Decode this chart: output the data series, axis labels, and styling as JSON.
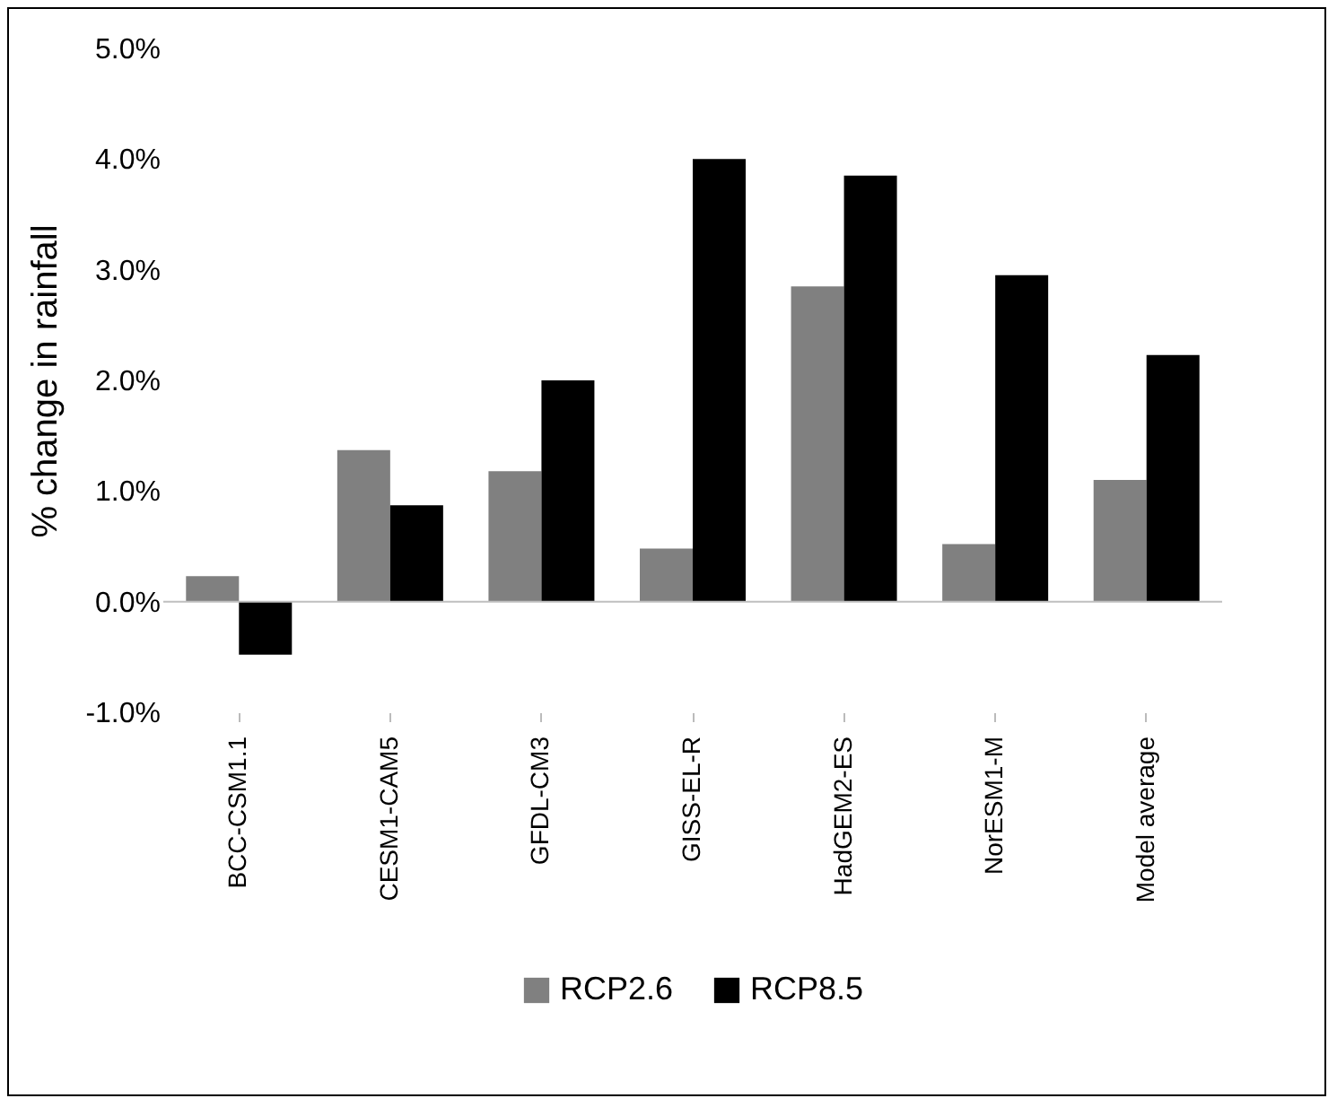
{
  "chart_data": {
    "type": "bar",
    "ylabel": "% change in rainfall",
    "categories": [
      "BCC-CSM1.1",
      "CESM1-CAM5",
      "GFDL-CM3",
      "GISS-EL-R",
      "HadGEM2-ES",
      "NorESM1-M",
      "Model average"
    ],
    "series": [
      {
        "name": "RCP2.6",
        "color": "#808080",
        "values": [
          0.23,
          1.37,
          1.18,
          0.48,
          2.85,
          0.52,
          1.1
        ]
      },
      {
        "name": "RCP8.5",
        "color": "#000000",
        "values": [
          -0.48,
          0.87,
          2.0,
          4.0,
          3.85,
          2.95,
          2.23
        ]
      }
    ],
    "ylim": [
      -1,
      5
    ],
    "yticks": [
      {
        "value": -1,
        "label": "-1.0%"
      },
      {
        "value": 0,
        "label": "0.0%"
      },
      {
        "value": 1,
        "label": "1.0%"
      },
      {
        "value": 2,
        "label": "2.0%"
      },
      {
        "value": 3,
        "label": "3.0%"
      },
      {
        "value": 4,
        "label": "4.0%"
      },
      {
        "value": 5,
        "label": "5.0%"
      }
    ],
    "ref_lines": [
      {
        "axis": "y",
        "value": 0,
        "color": "#bfbfbf"
      }
    ],
    "grid": false,
    "legend": "bottom"
  }
}
